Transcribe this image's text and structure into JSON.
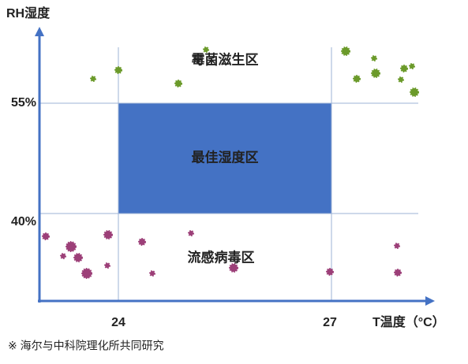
{
  "axes": {
    "y_label": "RH湿度",
    "x_label": "T温度（°C）",
    "y_ticks": [
      "55%",
      "40%"
    ],
    "x_ticks": [
      "24",
      "27"
    ]
  },
  "zones": {
    "mold": "霉菌滋生区",
    "optimal": "最佳湿度区",
    "virus": "流感病毒区"
  },
  "footnote": "※  海尔与中科院理化所共同研究"
}
